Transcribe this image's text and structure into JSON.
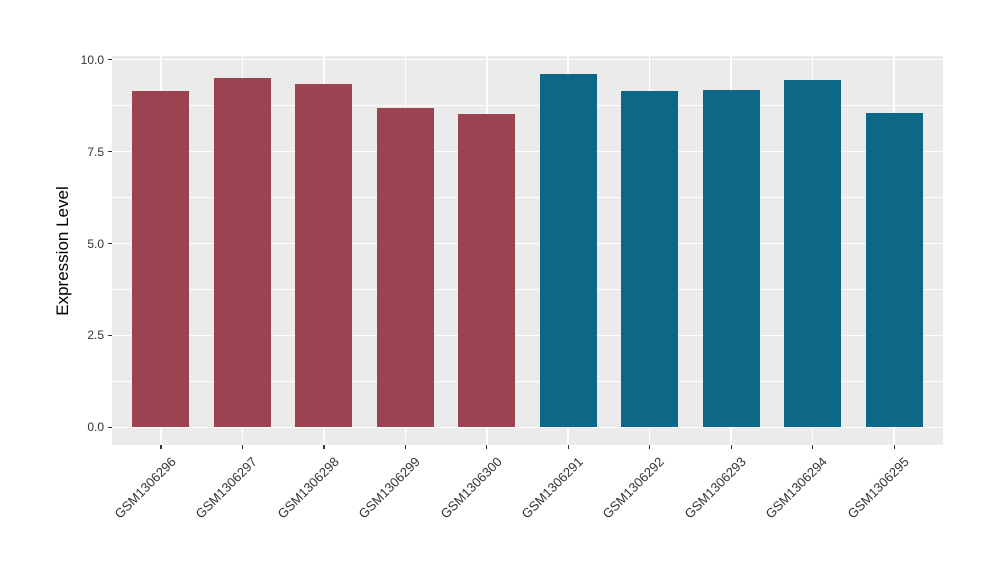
{
  "chart_data": {
    "type": "bar",
    "title": "",
    "xlabel": "",
    "ylabel": "Expression Level",
    "categories": [
      "GSM1306296",
      "GSM1306297",
      "GSM1306298",
      "GSM1306299",
      "GSM1306300",
      "GSM1306291",
      "GSM1306292",
      "GSM1306293",
      "GSM1306294",
      "GSM1306295"
    ],
    "values": [
      9.15,
      9.5,
      9.34,
      8.69,
      8.52,
      9.62,
      9.15,
      9.17,
      9.45,
      8.56
    ],
    "bar_groups": [
      "group1",
      "group1",
      "group1",
      "group1",
      "group1",
      "group2",
      "group2",
      "group2",
      "group2",
      "group2"
    ],
    "group_colors": {
      "group1": "#9B4351",
      "group2": "#0D6787"
    },
    "ytick_labels": [
      "0.0",
      "2.5",
      "5.0",
      "7.5",
      "10.0"
    ],
    "yticks": [
      0,
      2.5,
      5,
      7.5,
      10
    ],
    "minor_yticks": [
      1.25,
      3.75,
      6.25,
      8.75
    ],
    "ylim": [
      -0.48,
      10.1
    ],
    "xlim": [
      0.4,
      10.6
    ],
    "bar_width": 0.7,
    "grid": "on",
    "legend": "none",
    "panel_bg": "#EBEBEB",
    "grid_color": "#FFFFFF",
    "axis_text_color": "#333333"
  }
}
